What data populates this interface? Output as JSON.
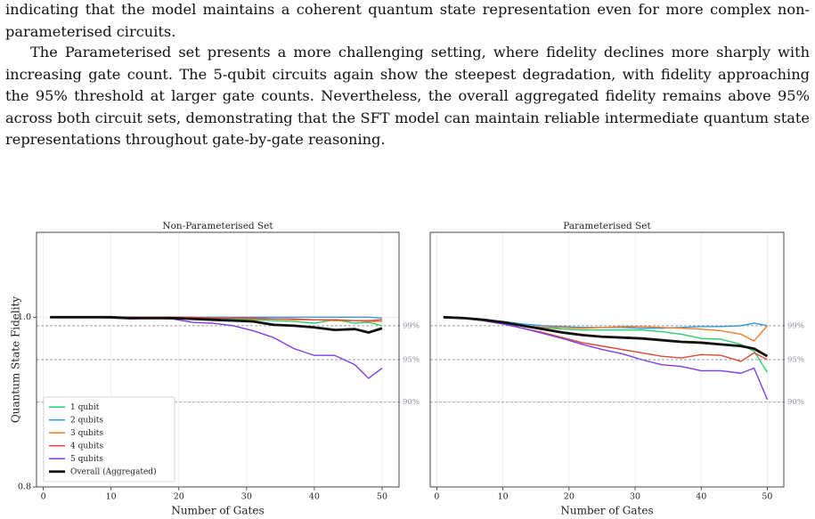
{
  "paragraphs": [
    "indicating that the model maintains a coherent quantum state representation even for more complex non-parameterised circuits.",
    "The Parameterised set presents a more challenging setting, where fidelity declines more sharply with increasing gate count. The 5-qubit circuits again show the steepest degradation, with fidelity approaching the 95% threshold at larger gate counts. Nevertheless, the overall aggregated fidelity remains above 95% across both circuit sets, demonstrating that the SFT model can maintain reliable intermediate quantum state representations throughout gate-by-gate reasoning."
  ],
  "chart_data": [
    {
      "type": "line",
      "title": "Non-Parameterised Set",
      "xlabel": "Number of Gates",
      "ylabel": "Quantum State Fidelity",
      "x": [
        1,
        4,
        7,
        10,
        13,
        16,
        19,
        22,
        25,
        28,
        31,
        34,
        37,
        40,
        43,
        46,
        48,
        50
      ],
      "series": [
        {
          "name": "1 qubit",
          "color": "#2ecc71",
          "linewidth": 1.4,
          "values": [
            1,
            1,
            1,
            1,
            1,
            1,
            1,
            0.999,
            0.999,
            0.998,
            0.997,
            0.996,
            0.995,
            0.993,
            0.997,
            0.993,
            0.994,
            0.99
          ]
        },
        {
          "name": "2 qubits",
          "color": "#3498db",
          "linewidth": 1.4,
          "values": [
            1,
            1,
            1,
            1,
            1,
            1,
            1,
            1,
            1,
            1,
            1,
            1,
            1,
            1,
            1,
            1,
            1,
            0.999
          ]
        },
        {
          "name": "3 qubits",
          "color": "#f07d2a",
          "linewidth": 1.4,
          "values": [
            1,
            1,
            1,
            1,
            1,
            1,
            1,
            0.999,
            0.999,
            0.999,
            0.998,
            0.998,
            0.997,
            0.997,
            0.996,
            0.996,
            0.995,
            0.995
          ]
        },
        {
          "name": "4 qubits",
          "color": "#d9483b",
          "linewidth": 1.4,
          "values": [
            1,
            1,
            1,
            1,
            1,
            1,
            1,
            1,
            0.999,
            0.999,
            0.999,
            0.998,
            0.998,
            0.997,
            0.997,
            0.996,
            0.996,
            0.997
          ]
        },
        {
          "name": "5 qubits",
          "color": "#7b3fe4",
          "linewidth": 1.4,
          "values": [
            1,
            1,
            1,
            0.999,
            0.998,
            0.999,
            0.998,
            0.994,
            0.993,
            0.99,
            0.984,
            0.976,
            0.963,
            0.955,
            0.955,
            0.944,
            0.928,
            0.94
          ]
        },
        {
          "name": "Overall (Aggregated)",
          "color": "#111111",
          "linewidth": 2.8,
          "values": [
            1,
            1,
            1,
            1,
            0.999,
            0.999,
            0.999,
            0.998,
            0.997,
            0.996,
            0.995,
            0.991,
            0.99,
            0.988,
            0.985,
            0.986,
            0.982,
            0.987
          ]
        }
      ],
      "xlim": [
        -1,
        52.5
      ],
      "ylim": [
        0.8,
        1.1
      ],
      "xticks": [
        0,
        10,
        20,
        30,
        40,
        50
      ],
      "yticks": [
        0.8,
        {
          "value": 1,
          "label": "1.0"
        }
      ],
      "thresholds": [
        {
          "value": 0.99,
          "label": "99%"
        },
        {
          "value": 0.95,
          "label": "95%"
        },
        {
          "value": 0.9,
          "label": "90%"
        }
      ],
      "grid": true,
      "legend": "lower left"
    },
    {
      "type": "line",
      "title": "Parameterised Set",
      "xlabel": "Number of Gates",
      "x": [
        1,
        4,
        7,
        10,
        13,
        16,
        19,
        22,
        25,
        28,
        31,
        34,
        37,
        40,
        43,
        46,
        48,
        50
      ],
      "series": [
        {
          "color": "#2ecc71",
          "linewidth": 1.4,
          "values": [
            1,
            0.999,
            0.997,
            0.994,
            0.99,
            0.988,
            0.986,
            0.985,
            0.985,
            0.985,
            0.985,
            0.983,
            0.98,
            0.975,
            0.974,
            0.968,
            0.96,
            0.935
          ]
        },
        {
          "color": "#3498db",
          "linewidth": 1.4,
          "values": [
            1,
            0.999,
            0.997,
            0.995,
            0.992,
            0.99,
            0.989,
            0.988,
            0.988,
            0.988,
            0.987,
            0.987,
            0.988,
            0.989,
            0.989,
            0.99,
            0.993,
            0.99
          ]
        },
        {
          "color": "#f07d2a",
          "linewidth": 1.4,
          "values": [
            1,
            0.999,
            0.996,
            0.993,
            0.99,
            0.988,
            0.988,
            0.987,
            0.988,
            0.989,
            0.989,
            0.988,
            0.987,
            0.986,
            0.984,
            0.98,
            0.972,
            0.99
          ]
        },
        {
          "color": "#d9483b",
          "linewidth": 1.4,
          "values": [
            1,
            0.999,
            0.996,
            0.992,
            0.987,
            0.982,
            0.976,
            0.97,
            0.966,
            0.962,
            0.958,
            0.954,
            0.952,
            0.956,
            0.955,
            0.948,
            0.958,
            0.95
          ]
        },
        {
          "color": "#7b3fe4",
          "linewidth": 1.4,
          "values": [
            1,
            0.999,
            0.996,
            0.992,
            0.987,
            0.981,
            0.975,
            0.968,
            0.962,
            0.957,
            0.95,
            0.944,
            0.942,
            0.937,
            0.937,
            0.934,
            0.94,
            0.903
          ]
        },
        {
          "color": "#111111",
          "linewidth": 2.8,
          "values": [
            1,
            0.999,
            0.997,
            0.994,
            0.99,
            0.986,
            0.982,
            0.979,
            0.977,
            0.976,
            0.975,
            0.973,
            0.971,
            0.97,
            0.968,
            0.966,
            0.963,
            0.954
          ]
        }
      ],
      "xlim": [
        -1,
        52.5
      ],
      "ylim": [
        0.8,
        1.1
      ],
      "xticks": [
        0,
        10,
        20,
        30,
        40,
        50
      ],
      "thresholds": [
        {
          "value": 0.99,
          "label": "99%"
        },
        {
          "value": 0.95,
          "label": "95%"
        },
        {
          "value": 0.9,
          "label": "90%"
        }
      ],
      "grid": true
    }
  ]
}
